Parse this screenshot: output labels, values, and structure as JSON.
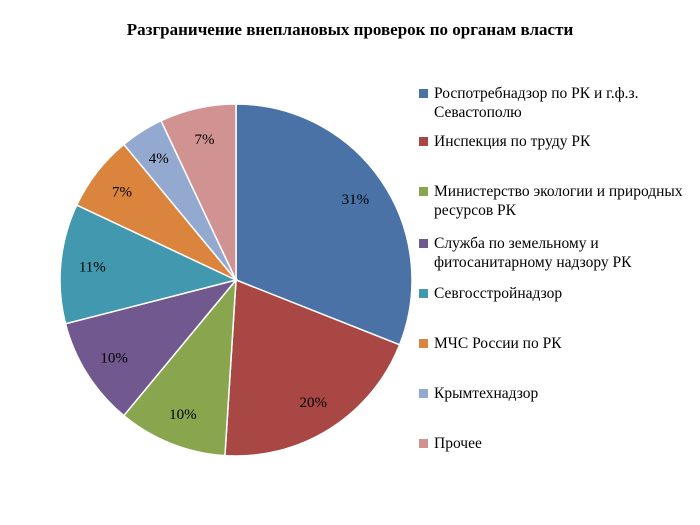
{
  "chart_data": {
    "type": "pie",
    "title": "Разграничение внеплановых проверок по органам власти",
    "legend_position": "right",
    "slices": [
      {
        "label": "Роспотребнадзор по РК и г.ф.з. Севастополю",
        "value": 31,
        "value_label": "31%",
        "color": "#4A72A6"
      },
      {
        "label": "Инспекция по труду РК",
        "value": 20,
        "value_label": "20%",
        "color": "#A84744"
      },
      {
        "label": "Министерство экологии и природных ресурсов РК",
        "value": 10,
        "value_label": "10%",
        "color": "#89A54E"
      },
      {
        "label": "Служба по земельному и фитосанитарному надзору РК",
        "value": 10,
        "value_label": "10%",
        "color": "#71588F"
      },
      {
        "label": "Севгосстройнадзор",
        "value": 11,
        "value_label": "11%",
        "color": "#4198AF"
      },
      {
        "label": "МЧС России по РК",
        "value": 7,
        "value_label": "7%",
        "color": "#DB843D"
      },
      {
        "label": "Крымтехнадзор",
        "value": 4,
        "value_label": "4%",
        "color": "#93A9CF"
      },
      {
        "label": "Прочее",
        "value": 7,
        "value_label": "7%",
        "color": "#D19392"
      }
    ]
  }
}
